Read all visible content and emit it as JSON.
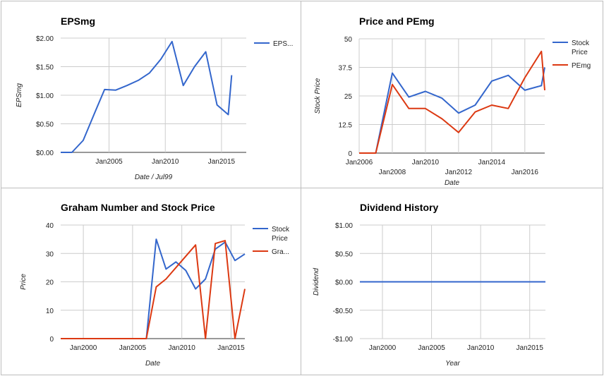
{
  "chart_data": [
    {
      "type": "line",
      "title": "EPSmg",
      "xlabel": "Date / Jul99",
      "ylabel": "EPSmg",
      "ylim": [
        0,
        2
      ],
      "y_ticks": [
        "$0.00",
        "$0.50",
        "$1.00",
        "$1.50",
        "$2.00"
      ],
      "xlim": [
        2000.7,
        2017.2
      ],
      "x_ticks": [
        {
          "v": 2005,
          "label": "Jan2005"
        },
        {
          "v": 2010,
          "label": "Jan2010"
        },
        {
          "v": 2015,
          "label": "Jan2015"
        }
      ],
      "legend": "right",
      "series": [
        {
          "name": "EPS...",
          "color": "#3366cc",
          "points": [
            [
              2000.7,
              0
            ],
            [
              2001.7,
              0
            ],
            [
              2002.7,
              0.21
            ],
            [
              2003.7,
              0.68
            ],
            [
              2004.6,
              1.1
            ],
            [
              2005.6,
              1.09
            ],
            [
              2006.6,
              1.17
            ],
            [
              2007.6,
              1.26
            ],
            [
              2008.6,
              1.39
            ],
            [
              2009.6,
              1.63
            ],
            [
              2010.6,
              1.94
            ],
            [
              2011.6,
              1.17
            ],
            [
              2012.6,
              1.5
            ],
            [
              2013.6,
              1.76
            ],
            [
              2014.6,
              0.83
            ],
            [
              2015.6,
              0.66
            ],
            [
              2015.9,
              1.35
            ]
          ]
        }
      ]
    },
    {
      "type": "line",
      "title": "Price and PEmg",
      "xlabel": "Date",
      "ylabel": "Stock Price",
      "ylim": [
        0,
        50
      ],
      "y_ticks": [
        "0",
        "12.5",
        "25",
        "37.5",
        "50"
      ],
      "xlim": [
        2006.0,
        2017.2
      ],
      "x_ticks": [
        {
          "v": 2006,
          "label": "Jan2006",
          "row": 0
        },
        {
          "v": 2008,
          "label": "Jan2008",
          "row": 1
        },
        {
          "v": 2010,
          "label": "Jan2010",
          "row": 0
        },
        {
          "v": 2012,
          "label": "Jan2012",
          "row": 1
        },
        {
          "v": 2014,
          "label": "Jan2014",
          "row": 0
        },
        {
          "v": 2016,
          "label": "Jan2016",
          "row": 1
        }
      ],
      "legend": "right",
      "series": [
        {
          "name": "Stock Price",
          "name_lines": [
            "Stock",
            "Price"
          ],
          "color": "#3366cc",
          "points": [
            [
              2006.0,
              0
            ],
            [
              2007.0,
              0
            ],
            [
              2008.0,
              35
            ],
            [
              2009.0,
              24.5
            ],
            [
              2010.0,
              27
            ],
            [
              2011.0,
              24
            ],
            [
              2012.0,
              17.5
            ],
            [
              2013.0,
              21
            ],
            [
              2014.0,
              31.5
            ],
            [
              2015.0,
              34
            ],
            [
              2016.0,
              27.5
            ],
            [
              2017.0,
              29.5
            ],
            [
              2017.2,
              37.5
            ]
          ]
        },
        {
          "name": "PEmg",
          "color": "#dc3912",
          "points": [
            [
              2006.0,
              0
            ],
            [
              2007.0,
              0
            ],
            [
              2008.0,
              30
            ],
            [
              2009.0,
              19.5
            ],
            [
              2010.0,
              19.5
            ],
            [
              2011.0,
              15
            ],
            [
              2012.0,
              9
            ],
            [
              2013.0,
              18
            ],
            [
              2014.0,
              21
            ],
            [
              2015.0,
              19.5
            ],
            [
              2016.0,
              33
            ],
            [
              2017.0,
              44.5
            ],
            [
              2017.2,
              27.5
            ]
          ]
        }
      ]
    },
    {
      "type": "line",
      "title": "Graham Number and Stock Price",
      "xlabel": "Date",
      "ylabel": "Price",
      "ylim": [
        0,
        40
      ],
      "y_ticks": [
        "0",
        "10",
        "20",
        "30",
        "40"
      ],
      "xlim": [
        1997.7,
        2016.4
      ],
      "x_ticks": [
        {
          "v": 2000,
          "label": "Jan2000"
        },
        {
          "v": 2005,
          "label": "Jan2005"
        },
        {
          "v": 2010,
          "label": "Jan2010"
        },
        {
          "v": 2015,
          "label": "Jan2015"
        }
      ],
      "legend": "right",
      "series": [
        {
          "name": "Stock Price",
          "name_lines": [
            "Stock",
            "Price"
          ],
          "color": "#3366cc",
          "points": [
            [
              1997.7,
              0
            ],
            [
              2006.4,
              0
            ],
            [
              2007.4,
              35
            ],
            [
              2008.4,
              24.5
            ],
            [
              2009.4,
              27
            ],
            [
              2010.4,
              24
            ],
            [
              2011.4,
              17.5
            ],
            [
              2012.4,
              21
            ],
            [
              2013.4,
              31.5
            ],
            [
              2014.4,
              34
            ],
            [
              2015.4,
              27.5
            ],
            [
              2016.4,
              29.8
            ]
          ]
        },
        {
          "name": "Gra...",
          "color": "#dc3912",
          "points": [
            [
              1997.7,
              0
            ],
            [
              2006.4,
              0
            ],
            [
              2007.4,
              18.2
            ],
            [
              2008.4,
              21
            ],
            [
              2011.4,
              33
            ],
            [
              2012.4,
              0
            ],
            [
              2013.4,
              33.5
            ],
            [
              2014.4,
              34.5
            ],
            [
              2015.4,
              0
            ],
            [
              2016.4,
              17.5
            ]
          ]
        }
      ]
    },
    {
      "type": "line",
      "title": "Dividend History",
      "xlabel": "Year",
      "ylabel": "Dividend",
      "ylim": [
        -1,
        1
      ],
      "y_ticks": [
        "-$1.00",
        "-$0.50",
        "$0.00",
        "$0.50",
        "$1.00"
      ],
      "xlim": [
        1997.7,
        2016.6
      ],
      "x_ticks": [
        {
          "v": 2000,
          "label": "Jan2000"
        },
        {
          "v": 2005,
          "label": "Jan2005"
        },
        {
          "v": 2010,
          "label": "Jan2010"
        },
        {
          "v": 2015,
          "label": "Jan2015"
        }
      ],
      "legend": "none",
      "series": [
        {
          "name": "",
          "color": "#3366cc",
          "points": [
            [
              1997.7,
              0
            ],
            [
              2016.6,
              0
            ]
          ]
        }
      ]
    }
  ]
}
